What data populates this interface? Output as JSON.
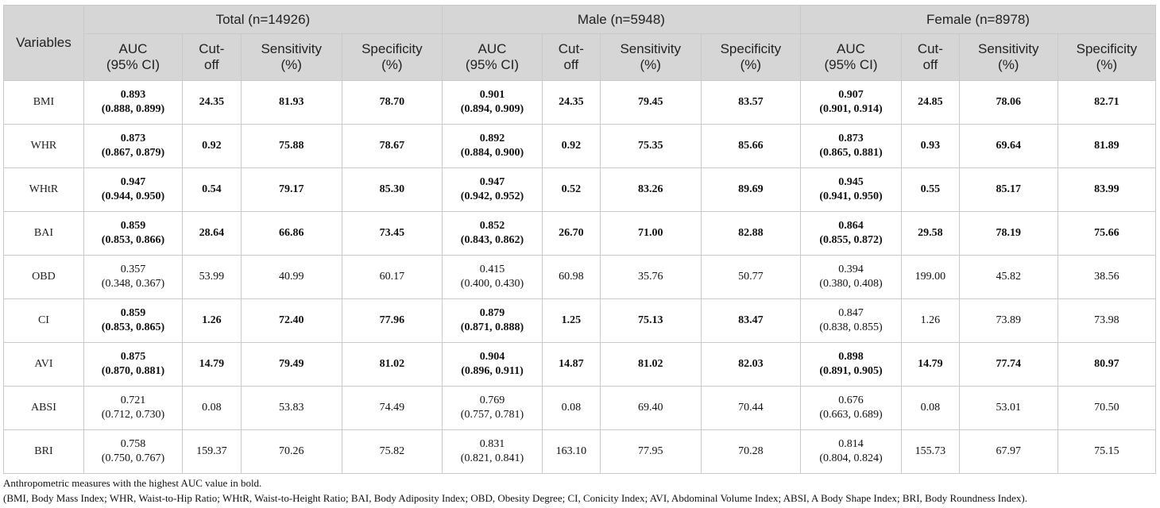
{
  "table": {
    "variables_header": "Variables",
    "groups": [
      {
        "label": "Total (n=14926)"
      },
      {
        "label": "Male (n=5948)"
      },
      {
        "label": "Female (n=8978)"
      }
    ],
    "subheaders": [
      {
        "l1": "AUC",
        "l2": "(95% CI)"
      },
      {
        "l1": "Cut-",
        "l2": "off"
      },
      {
        "l1": "Sensitivity",
        "l2": "(%)"
      },
      {
        "l1": "Specificity",
        "l2": "(%)"
      },
      {
        "l1": "AUC",
        "l2": "(95% CI)"
      },
      {
        "l1": "Cut-",
        "l2": "off"
      },
      {
        "l1": "Sensitivity",
        "l2": "(%)"
      },
      {
        "l1": "Specificity",
        "l2": "(%)"
      },
      {
        "l1": "AUC",
        "l2": "(95% CI)"
      },
      {
        "l1": "Cut-",
        "l2": "off"
      },
      {
        "l1": "Sensitivity",
        "l2": "(%)"
      },
      {
        "l1": "Specificity",
        "l2": "(%)"
      }
    ],
    "rows": [
      {
        "var": "BMI",
        "bold": [
          true,
          true,
          true
        ],
        "total": {
          "auc": "0.893",
          "ci": "(0.888, 0.899)",
          "cut": "24.35",
          "sens": "81.93",
          "spec": "78.70"
        },
        "male": {
          "auc": "0.901",
          "ci": "(0.894, 0.909)",
          "cut": "24.35",
          "sens": "79.45",
          "spec": "83.57"
        },
        "female": {
          "auc": "0.907",
          "ci": "(0.901, 0.914)",
          "cut": "24.85",
          "sens": "78.06",
          "spec": "82.71"
        }
      },
      {
        "var": "WHR",
        "bold": [
          true,
          true,
          true
        ],
        "total": {
          "auc": "0.873",
          "ci": "(0.867, 0.879)",
          "cut": "0.92",
          "sens": "75.88",
          "spec": "78.67"
        },
        "male": {
          "auc": "0.892",
          "ci": "(0.884, 0.900)",
          "cut": "0.92",
          "sens": "75.35",
          "spec": "85.66"
        },
        "female": {
          "auc": "0.873",
          "ci": "(0.865, 0.881)",
          "cut": "0.93",
          "sens": "69.64",
          "spec": "81.89"
        }
      },
      {
        "var": "WHtR",
        "bold": [
          true,
          true,
          true
        ],
        "total": {
          "auc": "0.947",
          "ci": "(0.944, 0.950)",
          "cut": "0.54",
          "sens": "79.17",
          "spec": "85.30"
        },
        "male": {
          "auc": "0.947",
          "ci": "(0.942, 0.952)",
          "cut": "0.52",
          "sens": "83.26",
          "spec": "89.69"
        },
        "female": {
          "auc": "0.945",
          "ci": "(0.941, 0.950)",
          "cut": "0.55",
          "sens": "85.17",
          "spec": "83.99"
        }
      },
      {
        "var": "BAI",
        "bold": [
          true,
          true,
          true
        ],
        "total": {
          "auc": "0.859",
          "ci": "(0.853, 0.866)",
          "cut": "28.64",
          "sens": "66.86",
          "spec": "73.45"
        },
        "male": {
          "auc": "0.852",
          "ci": "(0.843, 0.862)",
          "cut": "26.70",
          "sens": "71.00",
          "spec": "82.88"
        },
        "female": {
          "auc": "0.864",
          "ci": "(0.855, 0.872)",
          "cut": "29.58",
          "sens": "78.19",
          "spec": "75.66"
        }
      },
      {
        "var": "OBD",
        "bold": [
          false,
          false,
          false
        ],
        "total": {
          "auc": "0.357",
          "ci": "(0.348, 0.367)",
          "cut": "53.99",
          "sens": "40.99",
          "spec": "60.17"
        },
        "male": {
          "auc": "0.415",
          "ci": "(0.400, 0.430)",
          "cut": "60.98",
          "sens": "35.76",
          "spec": "50.77"
        },
        "female": {
          "auc": "0.394",
          "ci": "(0.380, 0.408)",
          "cut": "199.00",
          "sens": "45.82",
          "spec": "38.56"
        }
      },
      {
        "var": "CI",
        "bold": [
          true,
          true,
          false
        ],
        "total": {
          "auc": "0.859",
          "ci": "(0.853, 0.865)",
          "cut": "1.26",
          "sens": "72.40",
          "spec": "77.96"
        },
        "male": {
          "auc": "0.879",
          "ci": "(0.871, 0.888)",
          "cut": "1.25",
          "sens": "75.13",
          "spec": "83.47"
        },
        "female": {
          "auc": "0.847",
          "ci": "(0.838, 0.855)",
          "cut": "1.26",
          "sens": "73.89",
          "spec": "73.98"
        }
      },
      {
        "var": "AVI",
        "bold": [
          true,
          true,
          true
        ],
        "total": {
          "auc": "0.875",
          "ci": "(0.870, 0.881)",
          "cut": "14.79",
          "sens": "79.49",
          "spec": "81.02"
        },
        "male": {
          "auc": "0.904",
          "ci": "(0.896, 0.911)",
          "cut": "14.87",
          "sens": "81.02",
          "spec": "82.03"
        },
        "female": {
          "auc": "0.898",
          "ci": "(0.891, 0.905)",
          "cut": "14.79",
          "sens": "77.74",
          "spec": "80.97"
        }
      },
      {
        "var": "ABSI",
        "bold": [
          false,
          false,
          false
        ],
        "total": {
          "auc": "0.721",
          "ci": "(0.712, 0.730)",
          "cut": "0.08",
          "sens": "53.83",
          "spec": "74.49"
        },
        "male": {
          "auc": "0.769",
          "ci": "(0.757, 0.781)",
          "cut": "0.08",
          "sens": "69.40",
          "spec": "70.44"
        },
        "female": {
          "auc": "0.676",
          "ci": "(0.663, 0.689)",
          "cut": "0.08",
          "sens": "53.01",
          "spec": "70.50"
        }
      },
      {
        "var": "BRI",
        "bold": [
          false,
          false,
          false
        ],
        "total": {
          "auc": "0.758",
          "ci": "(0.750, 0.767)",
          "cut": "159.37",
          "sens": "70.26",
          "spec": "75.82"
        },
        "male": {
          "auc": "0.831",
          "ci": "(0.821, 0.841)",
          "cut": "163.10",
          "sens": "77.95",
          "spec": "70.28"
        },
        "female": {
          "auc": "0.814",
          "ci": "(0.804, 0.824)",
          "cut": "155.73",
          "sens": "67.97",
          "spec": "75.15"
        }
      }
    ]
  },
  "footnotes": {
    "note1": "Anthropometric measures with the highest AUC value in bold.",
    "note2": "(BMI, Body Mass Index; WHR, Waist-to-Hip Ratio; WHtR, Waist-to-Height Ratio; BAI, Body Adiposity Index; OBD, Obesity Degree; CI, Conicity Index; AVI, Abdominal Volume Index; ABSI, A Body Shape Index; BRI, Body Roundness Index)."
  }
}
